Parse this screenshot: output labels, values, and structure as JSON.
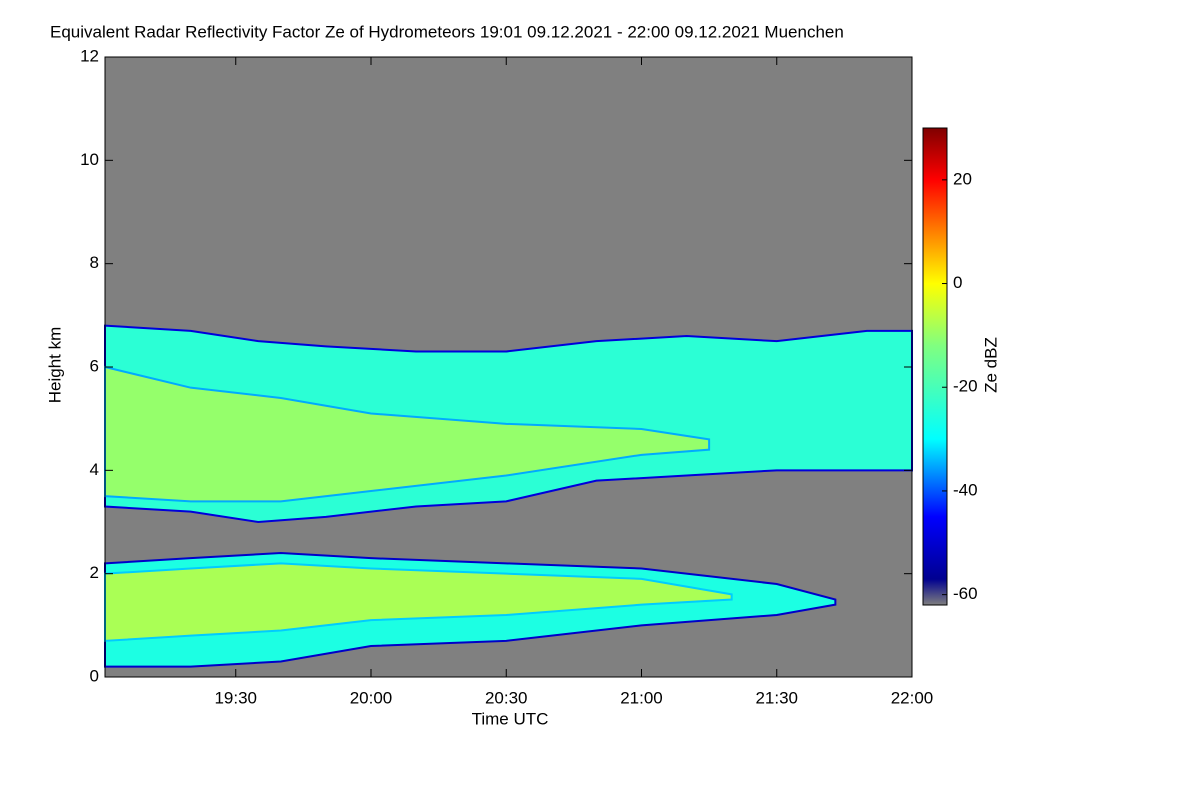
{
  "chart_data": {
    "type": "heatmap",
    "title": "Equivalent Radar Reflectivity Factor Ze of Hydrometeors   19:01 09.12.2021 - 22:00 09.12.2021 Muenchen",
    "x_label": "Time UTC",
    "y_label": "Height km",
    "colorbar_label": "Ze dBZ",
    "xlim": [
      1141,
      1320
    ],
    "xticks": [
      {
        "value": 1170,
        "label": "19:30"
      },
      {
        "value": 1200,
        "label": "20:00"
      },
      {
        "value": 1230,
        "label": "20:30"
      },
      {
        "value": 1260,
        "label": "21:00"
      },
      {
        "value": 1290,
        "label": "21:30"
      },
      {
        "value": 1320,
        "label": "22:00"
      }
    ],
    "ylim": [
      0,
      12
    ],
    "yticks": [
      0,
      2,
      4,
      6,
      8,
      10,
      12
    ],
    "clim": [
      -62,
      30
    ],
    "cticks": [
      -60,
      -40,
      -20,
      0,
      20
    ],
    "background": "#808080",
    "colormap": [
      {
        "value": -62,
        "color": "#7f7f7f"
      },
      {
        "value": -57,
        "color": "#000090"
      },
      {
        "value": -45,
        "color": "#0000ff"
      },
      {
        "value": -30,
        "color": "#00ffff"
      },
      {
        "value": -12,
        "color": "#80ff80"
      },
      {
        "value": 0,
        "color": "#ffff00"
      },
      {
        "value": 10,
        "color": "#ff8000"
      },
      {
        "value": 20,
        "color": "#ff0000"
      },
      {
        "value": 30,
        "color": "#800000"
      }
    ],
    "regions": [
      {
        "x": [
          1141,
          1160,
          1175,
          1190,
          1210,
          1230,
          1250,
          1270,
          1290,
          1310,
          1320
        ],
        "top": [
          6.8,
          6.7,
          6.5,
          6.4,
          6.3,
          6.3,
          6.5,
          6.6,
          6.5,
          6.7,
          6.7
        ],
        "base": [
          3.3,
          3.2,
          3.0,
          3.1,
          3.3,
          3.4,
          3.8,
          3.9,
          4.0,
          4.0,
          4.0
        ],
        "ze": -24
      },
      {
        "x": [
          1141,
          1160,
          1180,
          1200,
          1230,
          1260,
          1275
        ],
        "top": [
          6.0,
          5.6,
          5.4,
          5.1,
          4.9,
          4.8,
          4.6
        ],
        "base": [
          3.5,
          3.4,
          3.4,
          3.6,
          3.9,
          4.3,
          4.4
        ],
        "ze": -10
      },
      {
        "x": [
          1141,
          1160,
          1180,
          1200,
          1230,
          1260,
          1290,
          1303
        ],
        "top": [
          2.2,
          2.3,
          2.4,
          2.3,
          2.2,
          2.1,
          1.8,
          1.5
        ],
        "base": [
          0.2,
          0.2,
          0.3,
          0.6,
          0.7,
          1.0,
          1.2,
          1.4
        ],
        "ze": -26
      },
      {
        "x": [
          1141,
          1160,
          1180,
          1200,
          1230,
          1260,
          1280
        ],
        "top": [
          2.0,
          2.1,
          2.2,
          2.1,
          2.0,
          1.9,
          1.6
        ],
        "base": [
          0.7,
          0.8,
          0.9,
          1.1,
          1.2,
          1.4,
          1.5
        ],
        "ze": -8
      }
    ]
  }
}
